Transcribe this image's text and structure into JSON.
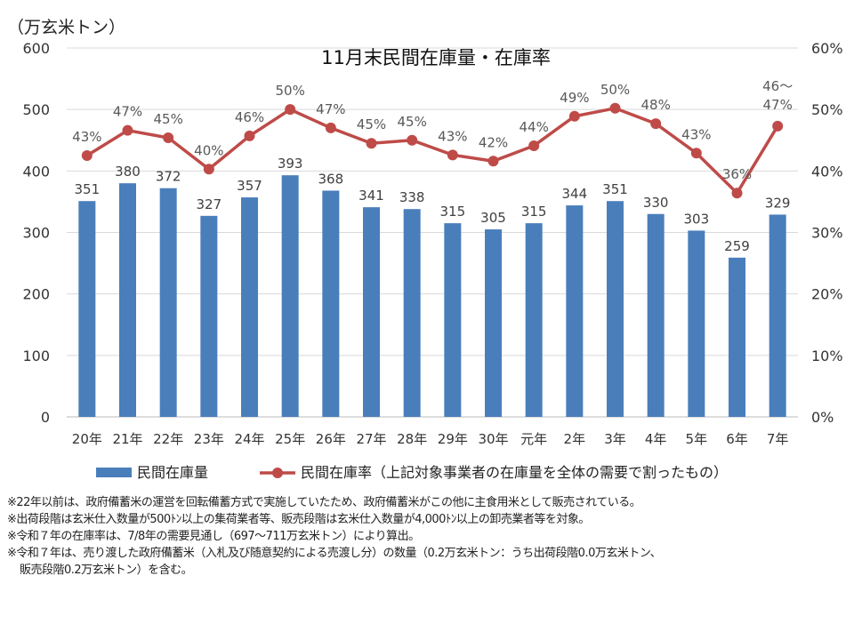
{
  "chart_data": {
    "type": "bar+line",
    "title": "11月末民間在庫量・在庫率",
    "ylabel": "（万玄米トン）",
    "ylim": [
      0,
      600
    ],
    "y_ticks": [
      "0",
      "100",
      "200",
      "300",
      "400",
      "500",
      "600"
    ],
    "y2lim": [
      0,
      60
    ],
    "y2_ticks": [
      "0%",
      "10%",
      "20%",
      "30%",
      "40%",
      "50%",
      "60%"
    ],
    "grid": true,
    "legend_position": "bottom",
    "categories": [
      "20年",
      "21年",
      "22年",
      "23年",
      "24年",
      "25年",
      "26年",
      "27年",
      "28年",
      "29年",
      "30年",
      "元年",
      "2年",
      "3年",
      "4年",
      "5年",
      "6年",
      "7年"
    ],
    "series": [
      {
        "name": "民間在庫量",
        "type": "bar",
        "axis": "left",
        "color": "#4a7ebb",
        "values": [
          351,
          380,
          372,
          327,
          357,
          393,
          368,
          341,
          338,
          315,
          305,
          315,
          344,
          351,
          330,
          303,
          259,
          329
        ]
      },
      {
        "name": "民間在庫率（上記対象事業者の在庫量を全体の需要で割ったもの）",
        "type": "line",
        "axis": "right",
        "color": "#be4b48",
        "values": [
          42.5,
          46.6,
          45.4,
          40.3,
          45.7,
          50.0,
          47.0,
          44.5,
          45.0,
          42.6,
          41.6,
          44.1,
          48.9,
          50.2,
          47.7,
          42.9,
          36.4,
          47.3
        ],
        "labels": [
          "43%",
          "47%",
          "45%",
          "40%",
          "46%",
          "50%",
          "47%",
          "45%",
          "45%",
          "43%",
          "42%",
          "44%",
          "49%",
          "50%",
          "48%",
          "43%",
          "36%",
          "47%"
        ],
        "last_label_prefix": "46～"
      }
    ]
  },
  "notes": [
    "※22年以前は、政府備蓄米の運営を回転備蓄方式で実施していたため、政府備蓄米がこの他に主食用米として販売されている。",
    "※出荷段階は玄米仕入数量が500ﾄﾝ以上の集荷業者等、販売段階は玄米仕入数量が4,000ﾄﾝ以上の卸売業者等を対象。",
    "※令和７年の在庫率は、7/8年の需要見通し（697～711万玄米トン）により算出。",
    "※令和７年は、売り渡した政府備蓄米（入札及び随意契約による売渡し分）の数量（0.2万玄米トン：うち出荷段階0.0万玄米トン、",
    "販売段階0.2万玄米トン）を含む。"
  ]
}
